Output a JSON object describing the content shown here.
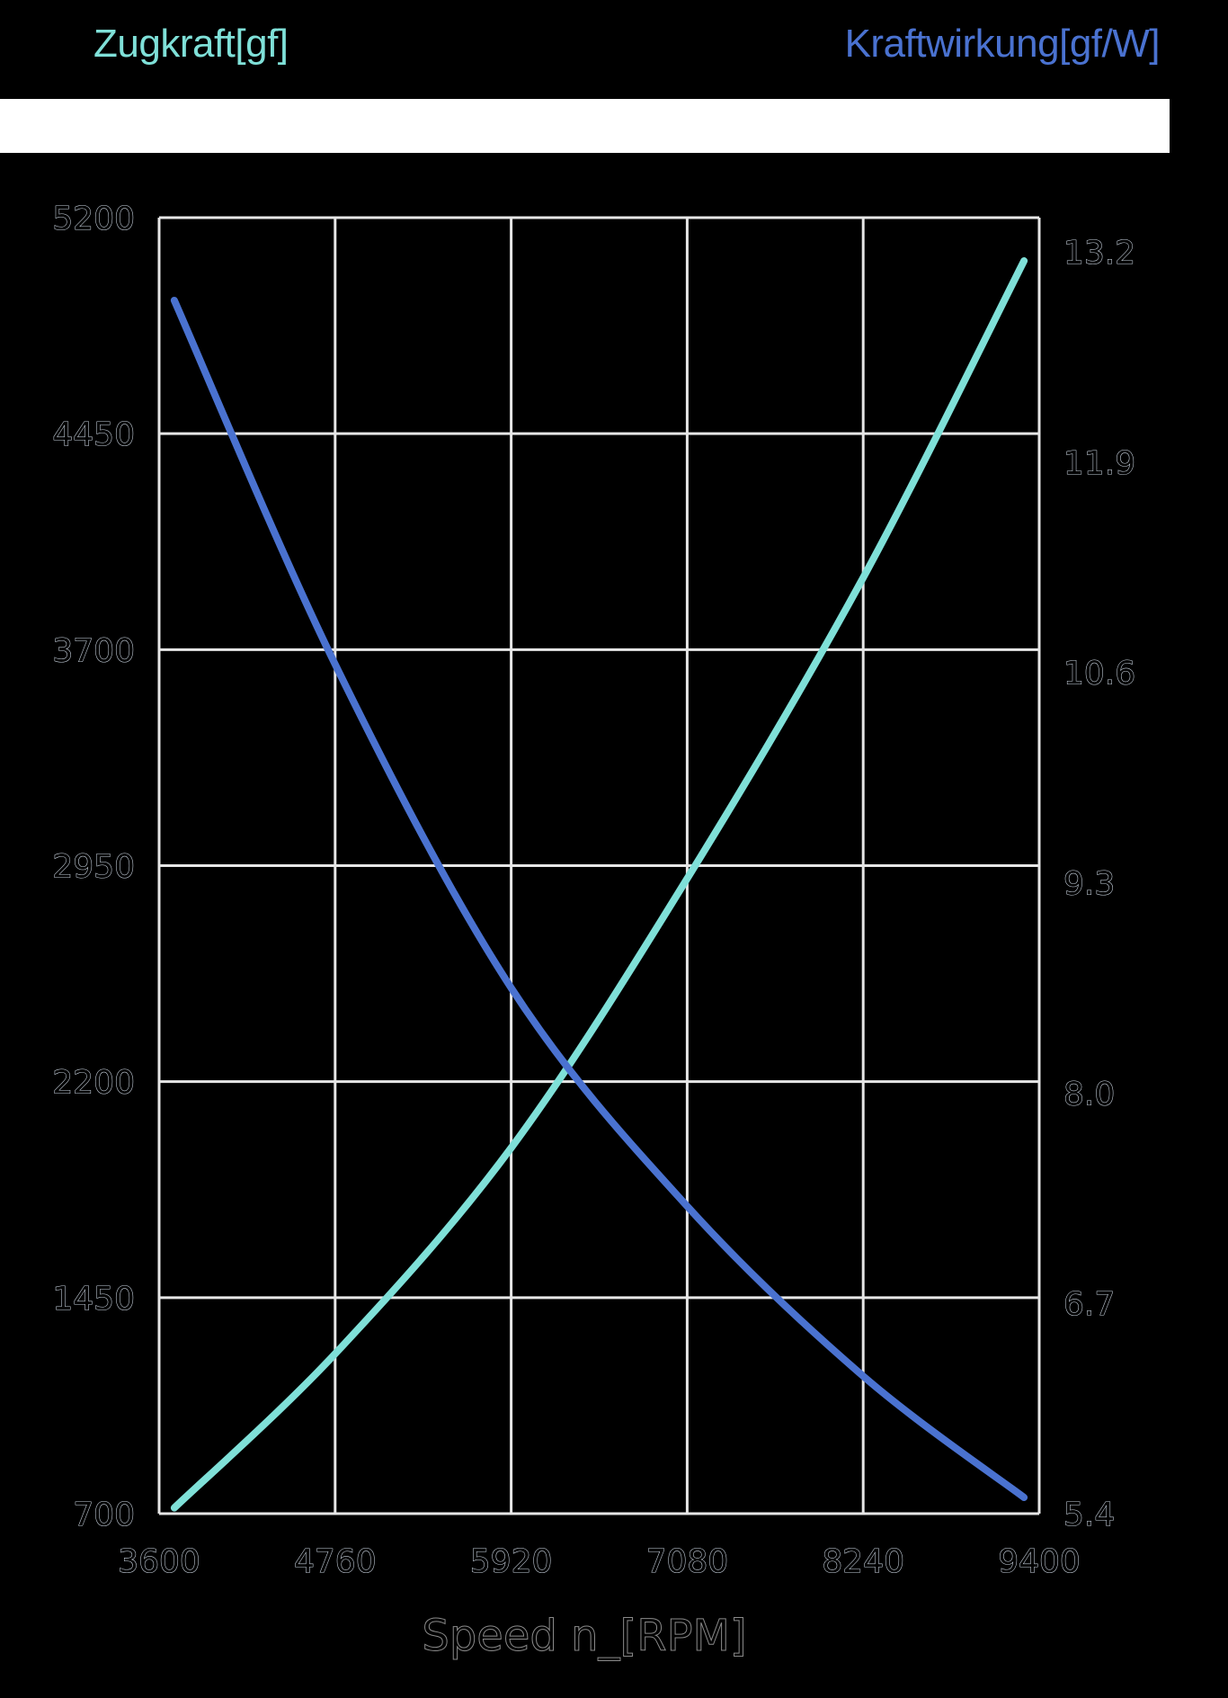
{
  "legend": {
    "left_title": "Zugkraft[gf]",
    "right_title": "Kraftwirkung[gf/W]"
  },
  "colors": {
    "background": "#000000",
    "grid": "#e6e6e6",
    "thrust": "#7fe0d8",
    "efficiency": "#4a72d0",
    "banner": "#ffffff"
  },
  "axes": {
    "x_label": "Speed n_[RPM]",
    "x_ticks": [
      "3600",
      "4760",
      "5920",
      "7080",
      "8240",
      "9400"
    ],
    "y_left_ticks": [
      "5200",
      "4450",
      "3700",
      "2950",
      "2200",
      "1450",
      "700"
    ],
    "y_right_ticks": [
      "13.2",
      "11.9",
      "10.6",
      "9.3",
      "8.0",
      "6.7",
      "5.4"
    ]
  },
  "chart_data": {
    "type": "line",
    "title": "",
    "xlabel": "Speed n_[RPM]",
    "ylabel": "Zugkraft[gf]",
    "y2label": "Kraftwirkung[gf/W]",
    "xlim": [
      3600,
      9400
    ],
    "ylim": [
      700,
      5200
    ],
    "y2lim": [
      5.4,
      13.2
    ],
    "x_ticks": [
      3600,
      4760,
      5920,
      7080,
      8240,
      9400
    ],
    "y_ticks": [
      700,
      1450,
      2200,
      2950,
      3700,
      4450,
      5200
    ],
    "y2_ticks": [
      5.4,
      6.7,
      8.0,
      9.3,
      10.6,
      11.9,
      13.2
    ],
    "grid": true,
    "legend_position": "top (left/right axis titles)",
    "series": [
      {
        "name": "Zugkraft[gf]",
        "axis": "left",
        "color": "#7fe0d8",
        "x": [
          3700,
          4760,
          5920,
          7080,
          8240,
          9300
        ],
        "values": [
          720,
          1255,
          1970,
          2905,
          3950,
          5050
        ]
      },
      {
        "name": "Kraftwirkung[gf/W]",
        "axis": "right",
        "color": "#4a72d0",
        "x": [
          3700,
          4760,
          5920,
          7080,
          8240,
          9300
        ],
        "values": [
          12.9,
          10.65,
          8.65,
          7.3,
          6.25,
          5.5
        ]
      }
    ]
  }
}
